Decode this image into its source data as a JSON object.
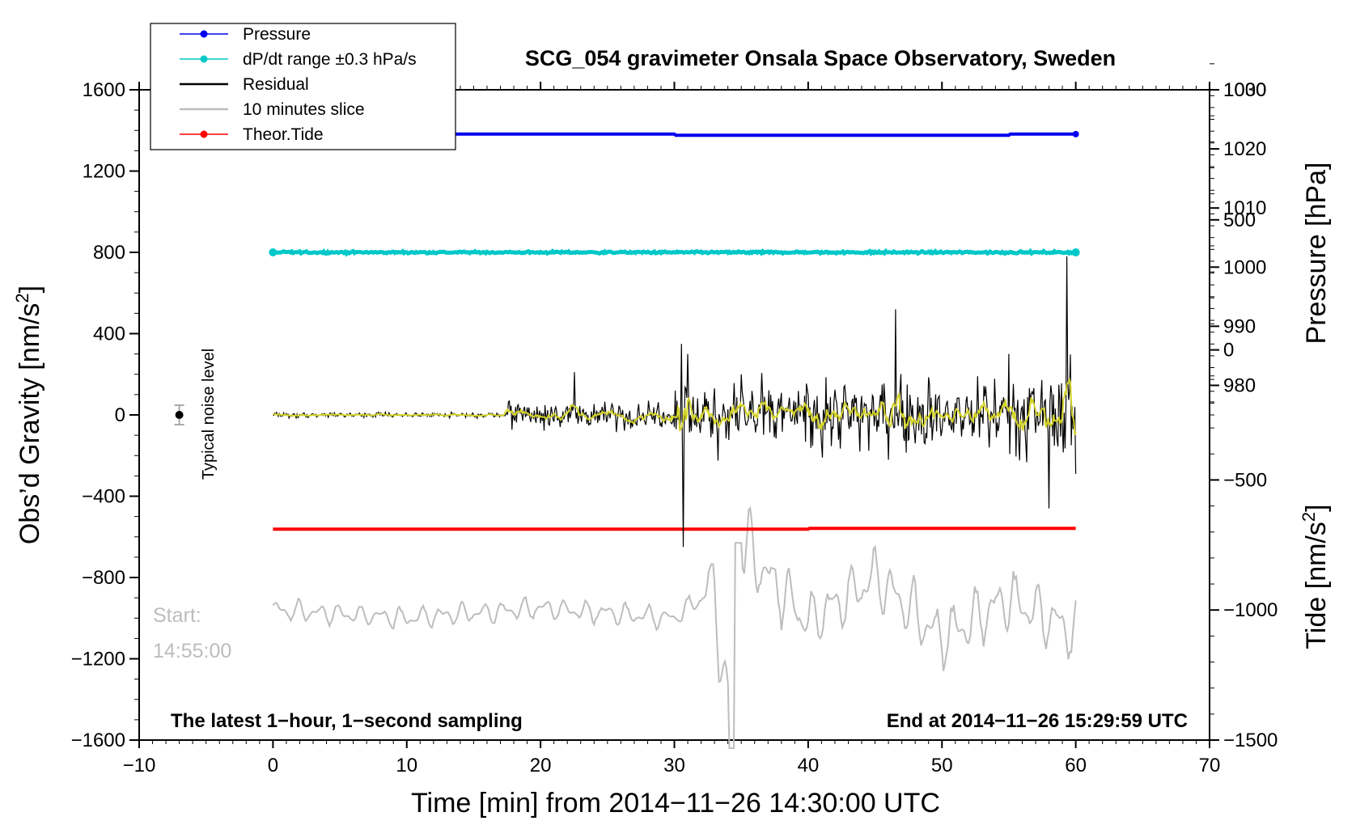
{
  "chart_data": {
    "type": "line",
    "title": "SCG_054 gravimeter Onsala Space Observatory, Sweden",
    "xlabel": "Time [min] from 2014−11−26 14:30:00 UTC",
    "ylabel_left_main": "Obs’d Gravity [nm/s",
    "ylabel_left_sup": "2",
    "ylabel_left_close": "]",
    "ylabel_right_pressure": "Pressure [hPa]",
    "ylabel_right_tide_main": "Tide [nm/s",
    "ylabel_right_tide_sup": "2",
    "ylabel_right_tide_close": "]",
    "xlim": [
      -10,
      70
    ],
    "ylim_gravity": [
      -1600,
      1600
    ],
    "ylim_pressure": [
      920,
      1030
    ],
    "ylim_tide": [
      -1500,
      1000
    ],
    "x_ticks": [
      -10,
      0,
      10,
      20,
      30,
      40,
      50,
      60,
      70
    ],
    "x_tick_labels": [
      "−10",
      "0",
      "10",
      "20",
      "30",
      "40",
      "50",
      "60",
      "70"
    ],
    "gravity_ticks": [
      1600,
      1200,
      800,
      400,
      0,
      -400,
      -800,
      -1200,
      -1600
    ],
    "gravity_tick_labels": [
      "1600",
      "1200",
      "800",
      "400",
      "0",
      "−400",
      "−800",
      "−1200",
      "−1600"
    ],
    "pressure_ticks": [
      1030,
      1020,
      1010,
      1000,
      990,
      980
    ],
    "pressure_tick_labels": [
      "1030",
      "1020",
      "1010",
      "1000",
      "990",
      "980"
    ],
    "tide_ticks": [
      1000,
      500,
      0,
      -500,
      -1000,
      -1500
    ],
    "tide_tick_labels": [
      "1000",
      "500",
      "0",
      "−500",
      "−1000",
      "−1500"
    ],
    "legend": [
      {
        "label": "Pressure",
        "color": "#0000ee",
        "marker": "dot"
      },
      {
        "label": "dP/dt range ±0.3 hPa/s",
        "color": "#00c8c8",
        "marker": "dot"
      },
      {
        "label": "Residual",
        "color": "#000000",
        "marker": "line"
      },
      {
        "label": "10 minutes slice",
        "color": "#bdbdbd",
        "marker": "line"
      },
      {
        "label": "Theor.Tide",
        "color": "#ff0000",
        "marker": "dot"
      }
    ],
    "legend_position": "top-left",
    "series": [
      {
        "name": "Pressure",
        "axis": "pressure",
        "color": "#0000ee",
        "x": [
          0,
          30,
          30.1,
          55,
          55.1,
          60
        ],
        "y": [
          1022.5,
          1022.5,
          1022.3,
          1022.3,
          1022.5,
          1022.5
        ]
      },
      {
        "name": "dP/dt range",
        "axis": "gravity",
        "color": "#00c8c8",
        "x": [
          0,
          60
        ],
        "y": [
          800,
          800
        ]
      },
      {
        "name": "Theor.Tide",
        "axis": "gravity",
        "color": "#ff0000",
        "x": [
          0,
          40,
          40.1,
          60
        ],
        "y": [
          -562,
          -562,
          -558,
          -558
        ]
      },
      {
        "name": "Residual",
        "axis": "gravity",
        "color": "#000000",
        "x": [
          0,
          5,
          10,
          15,
          17.5,
          18,
          20,
          22,
          22.5,
          25,
          30,
          30.5,
          30.7,
          31,
          35,
          40,
          46.5,
          50,
          55,
          58,
          59,
          59.3,
          60
        ],
        "y": [
          0,
          0,
          0,
          0,
          0,
          50,
          30,
          0,
          210,
          0,
          0,
          350,
          -650,
          300,
          200,
          100,
          520,
          100,
          300,
          -460,
          0,
          780,
          -290
        ]
      },
      {
        "name": "10 minutes slice",
        "axis": "gravity",
        "color": "#bdbdbd",
        "x": [
          0,
          10,
          20,
          30,
          33,
          34.3,
          34.8,
          40,
          45,
          50,
          55,
          60
        ],
        "y": [
          -960,
          -1000,
          -950,
          -1000,
          -850,
          -1650,
          -630,
          -1020,
          -800,
          -1100,
          -900,
          -1070
        ]
      }
    ],
    "noise_marker": {
      "x": -7,
      "y": 0
    },
    "annotations": {
      "noise_label": "Typical noise level",
      "slice_start": "Start:",
      "slice_time": "14:55:00",
      "latest": "The latest 1−hour, 1−second sampling",
      "end": "End at 2014−11−26 15:29:59 UTC"
    }
  }
}
